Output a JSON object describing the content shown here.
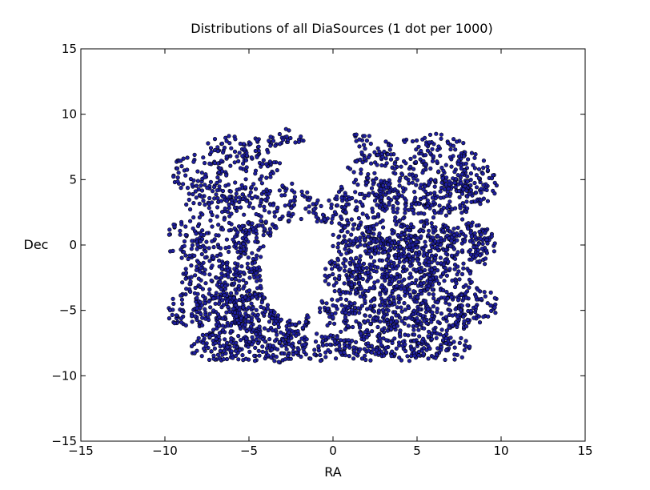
{
  "chart_data": {
    "type": "scatter",
    "title": "Distributions of all DiaSources (1 dot per 1000)",
    "xlabel": "RA",
    "ylabel": "Dec",
    "xlim": [
      -15,
      15
    ],
    "ylim": [
      -15,
      15
    ],
    "xticks": [
      -15,
      -10,
      -5,
      0,
      5,
      10,
      15
    ],
    "yticks": [
      -15,
      -10,
      -5,
      0,
      5,
      10,
      15
    ],
    "xtick_labels": [
      "−15",
      "−10",
      "−5",
      "0",
      "5",
      "10",
      "15"
    ],
    "ytick_labels": [
      "−15",
      "−10",
      "−5",
      "0",
      "5",
      "10",
      "15"
    ],
    "grid": false,
    "legend": "none",
    "marker_color": "#1f1fa0",
    "marker_edge_color": "#000000",
    "regions": [
      {
        "cx": -8.0,
        "cy": 5.5,
        "rx": 1.6,
        "ry": 1.6,
        "n": 55
      },
      {
        "cx": -6.2,
        "cy": 6.8,
        "rx": 1.6,
        "ry": 1.6,
        "n": 55
      },
      {
        "cx": -4.2,
        "cy": 6.6,
        "rx": 1.6,
        "ry": 1.6,
        "n": 55
      },
      {
        "cx": -2.8,
        "cy": 8.2,
        "rx": 1.2,
        "ry": 0.8,
        "n": 25
      },
      {
        "cx": 2.0,
        "cy": 7.0,
        "rx": 1.8,
        "ry": 1.6,
        "n": 55
      },
      {
        "cx": 4.5,
        "cy": 6.8,
        "rx": 1.6,
        "ry": 1.6,
        "n": 55
      },
      {
        "cx": 6.5,
        "cy": 7.0,
        "rx": 1.6,
        "ry": 1.6,
        "n": 55
      },
      {
        "cx": 8.0,
        "cy": 5.5,
        "rx": 1.6,
        "ry": 1.6,
        "n": 55
      },
      {
        "cx": -7.2,
        "cy": 3.2,
        "rx": 1.6,
        "ry": 1.6,
        "n": 65
      },
      {
        "cx": -5.0,
        "cy": 3.6,
        "rx": 1.6,
        "ry": 1.6,
        "n": 65
      },
      {
        "cx": -2.6,
        "cy": 3.2,
        "rx": 1.6,
        "ry": 1.5,
        "n": 60
      },
      {
        "cx": 0.0,
        "cy": 2.6,
        "rx": 1.4,
        "ry": 1.2,
        "n": 45
      },
      {
        "cx": 2.0,
        "cy": 3.6,
        "rx": 1.8,
        "ry": 1.6,
        "n": 85
      },
      {
        "cx": 4.3,
        "cy": 3.6,
        "rx": 1.8,
        "ry": 1.6,
        "n": 110
      },
      {
        "cx": 6.6,
        "cy": 3.6,
        "rx": 1.8,
        "ry": 1.6,
        "n": 110
      },
      {
        "cx": 8.6,
        "cy": 4.6,
        "rx": 1.2,
        "ry": 1.5,
        "n": 50
      },
      {
        "cx": -8.8,
        "cy": 0.4,
        "rx": 1.3,
        "ry": 1.6,
        "n": 50
      },
      {
        "cx": -6.6,
        "cy": 0.2,
        "rx": 1.6,
        "ry": 1.6,
        "n": 70
      },
      {
        "cx": -4.4,
        "cy": 0.3,
        "rx": 1.6,
        "ry": 1.6,
        "n": 75
      },
      {
        "cx": 1.4,
        "cy": 0.2,
        "rx": 1.5,
        "ry": 1.6,
        "n": 95
      },
      {
        "cx": 3.4,
        "cy": 0.4,
        "rx": 1.6,
        "ry": 1.6,
        "n": 125
      },
      {
        "cx": 5.6,
        "cy": 0.3,
        "rx": 1.7,
        "ry": 1.6,
        "n": 125
      },
      {
        "cx": 7.8,
        "cy": 0.4,
        "rx": 1.6,
        "ry": 1.6,
        "n": 95
      },
      {
        "cx": 8.9,
        "cy": -0.2,
        "rx": 0.9,
        "ry": 1.4,
        "n": 35
      },
      {
        "cx": -7.4,
        "cy": -2.6,
        "rx": 1.6,
        "ry": 1.6,
        "n": 75
      },
      {
        "cx": -5.2,
        "cy": -2.8,
        "rx": 1.6,
        "ry": 1.6,
        "n": 100
      },
      {
        "cx": 0.6,
        "cy": -2.4,
        "rx": 1.3,
        "ry": 1.4,
        "n": 70
      },
      {
        "cx": 2.4,
        "cy": -2.6,
        "rx": 1.6,
        "ry": 1.6,
        "n": 110
      },
      {
        "cx": 4.6,
        "cy": -2.4,
        "rx": 1.7,
        "ry": 1.6,
        "n": 120
      },
      {
        "cx": 6.8,
        "cy": -2.6,
        "rx": 1.6,
        "ry": 1.6,
        "n": 90
      },
      {
        "cx": -8.8,
        "cy": -4.8,
        "rx": 1.3,
        "ry": 1.5,
        "n": 55
      },
      {
        "cx": -6.6,
        "cy": -5.4,
        "rx": 1.6,
        "ry": 1.6,
        "n": 115
      },
      {
        "cx": -4.4,
        "cy": -5.2,
        "rx": 1.6,
        "ry": 1.6,
        "n": 115
      },
      {
        "cx": -2.6,
        "cy": -5.8,
        "rx": 1.2,
        "ry": 1.4,
        "n": 55
      },
      {
        "cx": 0.2,
        "cy": -5.2,
        "rx": 1.2,
        "ry": 1.5,
        "n": 50
      },
      {
        "cx": 2.2,
        "cy": -5.4,
        "rx": 1.7,
        "ry": 1.6,
        "n": 100
      },
      {
        "cx": 4.4,
        "cy": -5.2,
        "rx": 1.7,
        "ry": 1.6,
        "n": 100
      },
      {
        "cx": 6.6,
        "cy": -5.4,
        "rx": 1.7,
        "ry": 1.6,
        "n": 95
      },
      {
        "cx": 8.6,
        "cy": -4.6,
        "rx": 1.2,
        "ry": 1.4,
        "n": 55
      },
      {
        "cx": -7.0,
        "cy": -7.8,
        "rx": 1.5,
        "ry": 1.1,
        "n": 65
      },
      {
        "cx": -5.0,
        "cy": -7.8,
        "rx": 1.6,
        "ry": 1.1,
        "n": 75
      },
      {
        "cx": -3.0,
        "cy": -8.0,
        "rx": 1.4,
        "ry": 1.0,
        "n": 60
      },
      {
        "cx": -0.6,
        "cy": -7.8,
        "rx": 1.6,
        "ry": 1.1,
        "n": 65
      },
      {
        "cx": 1.8,
        "cy": -7.8,
        "rx": 1.6,
        "ry": 1.1,
        "n": 70
      },
      {
        "cx": 4.2,
        "cy": -7.8,
        "rx": 1.6,
        "ry": 1.1,
        "n": 70
      },
      {
        "cx": 6.6,
        "cy": -7.8,
        "rx": 1.6,
        "ry": 1.1,
        "n": 65
      }
    ],
    "voids": [
      {
        "cx": -2.4,
        "cy": -2.0,
        "rx": 1.9,
        "ry": 3.8
      },
      {
        "cx": -2.0,
        "cy": 6.8,
        "rx": 1.3,
        "ry": 1.0
      },
      {
        "cx": 0.0,
        "cy": 7.2,
        "rx": 1.4,
        "ry": 1.5
      }
    ]
  }
}
